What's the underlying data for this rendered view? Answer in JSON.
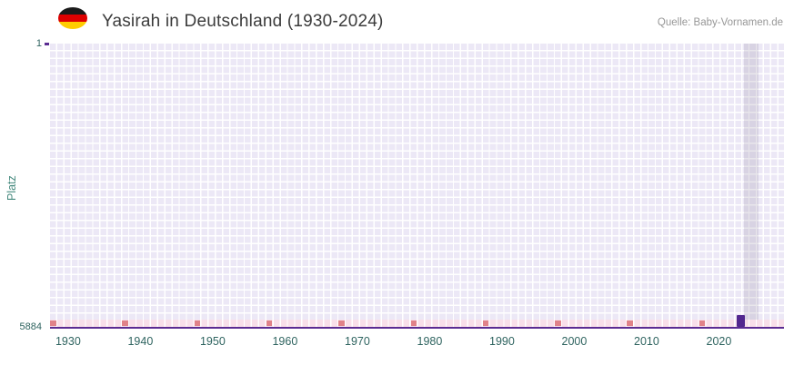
{
  "header": {
    "flag_icon": "german-flag",
    "title": "Yasirah in Deutschland (1930-2024)",
    "source": "Quelle: Baby-Vornamen.de"
  },
  "chart_data": {
    "type": "scatter",
    "title": "Yasirah in Deutschland (1930-2024)",
    "xlabel": "",
    "ylabel": "Platz",
    "x_range": [
      1927.5,
      2029
    ],
    "y_range": [
      1,
      5884
    ],
    "y_axis_inverted": true,
    "grid": true,
    "legend": false,
    "x_ticks": [
      1930,
      1940,
      1950,
      1960,
      1970,
      1980,
      1990,
      2000,
      2010,
      2020
    ],
    "y_ticks": [
      "1",
      "5884"
    ],
    "series": [
      {
        "name": "Yasirah",
        "points": [
          {
            "x": 2023,
            "y": 5884
          }
        ]
      }
    ],
    "bottom_strip_accent_years": [
      1928,
      1938,
      1948,
      1958,
      1968,
      1978,
      1988,
      1998,
      2008,
      2018
    ],
    "highlight_band_years": [
      2024,
      2025
    ],
    "colors": {
      "marker": "#52288f",
      "baseline": "#5b2c92",
      "grid_cell": "#ece8f6",
      "strip_cell": "#f8dfe9",
      "strip_accent": "#e08289",
      "highlight": "rgba(125,118,145,0.18)",
      "tick_text": "#2f6460",
      "axis_label_text": "#44897d"
    }
  }
}
